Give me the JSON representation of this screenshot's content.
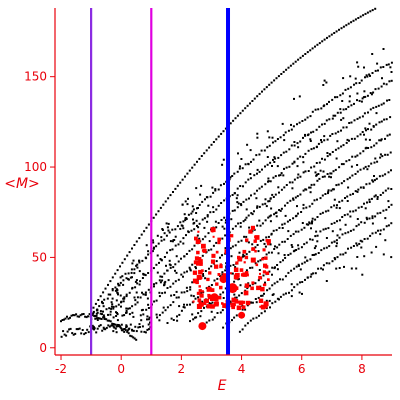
{
  "chart_data": {
    "type": "scatter",
    "xlabel": "E",
    "ylabel": "<M>",
    "xlim": [
      -2.2,
      9.0
    ],
    "ylim": [
      -4,
      188
    ],
    "x_ticks": [
      -2,
      0,
      2,
      4,
      6,
      8
    ],
    "y_ticks": [
      0,
      50,
      100,
      150
    ],
    "grid": false,
    "colors": {
      "axes": "#e8000b",
      "black_points": "#000000",
      "red_points": "#ff0000",
      "line_purple": "#8a2be2",
      "line_magenta": "#e000e0",
      "line_blue": "#0000ff"
    },
    "vertical_lines": [
      {
        "x": -1.0,
        "color": "#8a2be2"
      },
      {
        "x": 1.0,
        "color": "#e000e0"
      },
      {
        "x": 3.55,
        "color": "#0000ff"
      }
    ],
    "black_band": {
      "x_min": -2.2,
      "x_max": 9.0
    },
    "red_cluster": {
      "x_min": 2.4,
      "x_max": 5.0,
      "y_min": 10,
      "y_max": 90
    }
  }
}
